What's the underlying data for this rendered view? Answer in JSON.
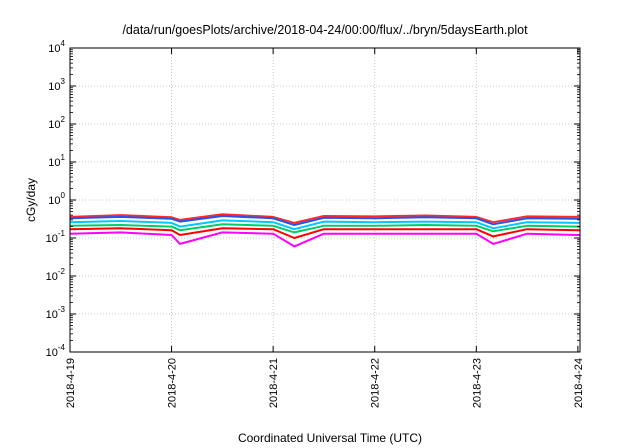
{
  "chart_data": {
    "type": "line",
    "title": "/data/run/goesPlots/archive/2018-04-24/00:00/flux/../bryn/5daysEarth.plot",
    "xlabel": "Coordinated Universal Time (UTC)",
    "ylabel": "cGy/day",
    "yscale": "log",
    "ylim": [
      0.0001,
      10000
    ],
    "xlim": [
      "2018-4-19",
      "2018-4-24 00:30"
    ],
    "grid": true,
    "x_ticks": [
      "2018-4-19",
      "2018-4-20",
      "2018-4-21",
      "2018-4-22",
      "2018-4-23",
      "2018-4-24"
    ],
    "y_ticks": [
      {
        "base": "10",
        "exp": "-4"
      },
      {
        "base": "10",
        "exp": "-3"
      },
      {
        "base": "10",
        "exp": "-2"
      },
      {
        "base": "10",
        "exp": "-1"
      },
      {
        "base": "10",
        "exp": "0"
      },
      {
        "base": "10",
        "exp": "1"
      },
      {
        "base": "10",
        "exp": "2"
      },
      {
        "base": "10",
        "exp": "3"
      },
      {
        "base": "10",
        "exp": "4"
      }
    ],
    "x": [
      "2018-4-19 00:00",
      "2018-4-19 12:00",
      "2018-4-20 00:00",
      "2018-4-20 02:00",
      "2018-4-20 12:00",
      "2018-4-21 00:00",
      "2018-4-21 05:00",
      "2018-4-21 12:00",
      "2018-4-22 00:00",
      "2018-4-22 12:00",
      "2018-4-23 00:00",
      "2018-4-23 04:00",
      "2018-4-23 12:00",
      "2018-4-24 00:00",
      "2018-4-24 00:30"
    ],
    "series": [
      {
        "color": "#ff2a2a",
        "values": [
          0.36,
          0.4,
          0.35,
          0.3,
          0.42,
          0.36,
          0.25,
          0.38,
          0.37,
          0.39,
          0.36,
          0.26,
          0.37,
          0.36,
          0.36
        ]
      },
      {
        "color": "#2255ee",
        "values": [
          0.33,
          0.36,
          0.32,
          0.27,
          0.38,
          0.33,
          0.22,
          0.34,
          0.33,
          0.35,
          0.33,
          0.23,
          0.33,
          0.32,
          0.32
        ]
      },
      {
        "color": "#00c8ff",
        "values": [
          0.26,
          0.28,
          0.25,
          0.2,
          0.29,
          0.26,
          0.17,
          0.27,
          0.26,
          0.27,
          0.26,
          0.18,
          0.26,
          0.25,
          0.25
        ]
      },
      {
        "color": "#00cc66",
        "values": [
          0.21,
          0.22,
          0.2,
          0.16,
          0.23,
          0.21,
          0.14,
          0.21,
          0.21,
          0.22,
          0.21,
          0.15,
          0.21,
          0.2,
          0.2
        ]
      },
      {
        "color": "#ff0000",
        "values": [
          0.17,
          0.18,
          0.16,
          0.12,
          0.18,
          0.17,
          0.1,
          0.17,
          0.17,
          0.17,
          0.17,
          0.11,
          0.17,
          0.16,
          0.16
        ]
      },
      {
        "color": "#ff00ff",
        "values": [
          0.13,
          0.14,
          0.12,
          0.07,
          0.14,
          0.13,
          0.06,
          0.13,
          0.13,
          0.13,
          0.13,
          0.07,
          0.13,
          0.12,
          0.12
        ]
      }
    ]
  }
}
